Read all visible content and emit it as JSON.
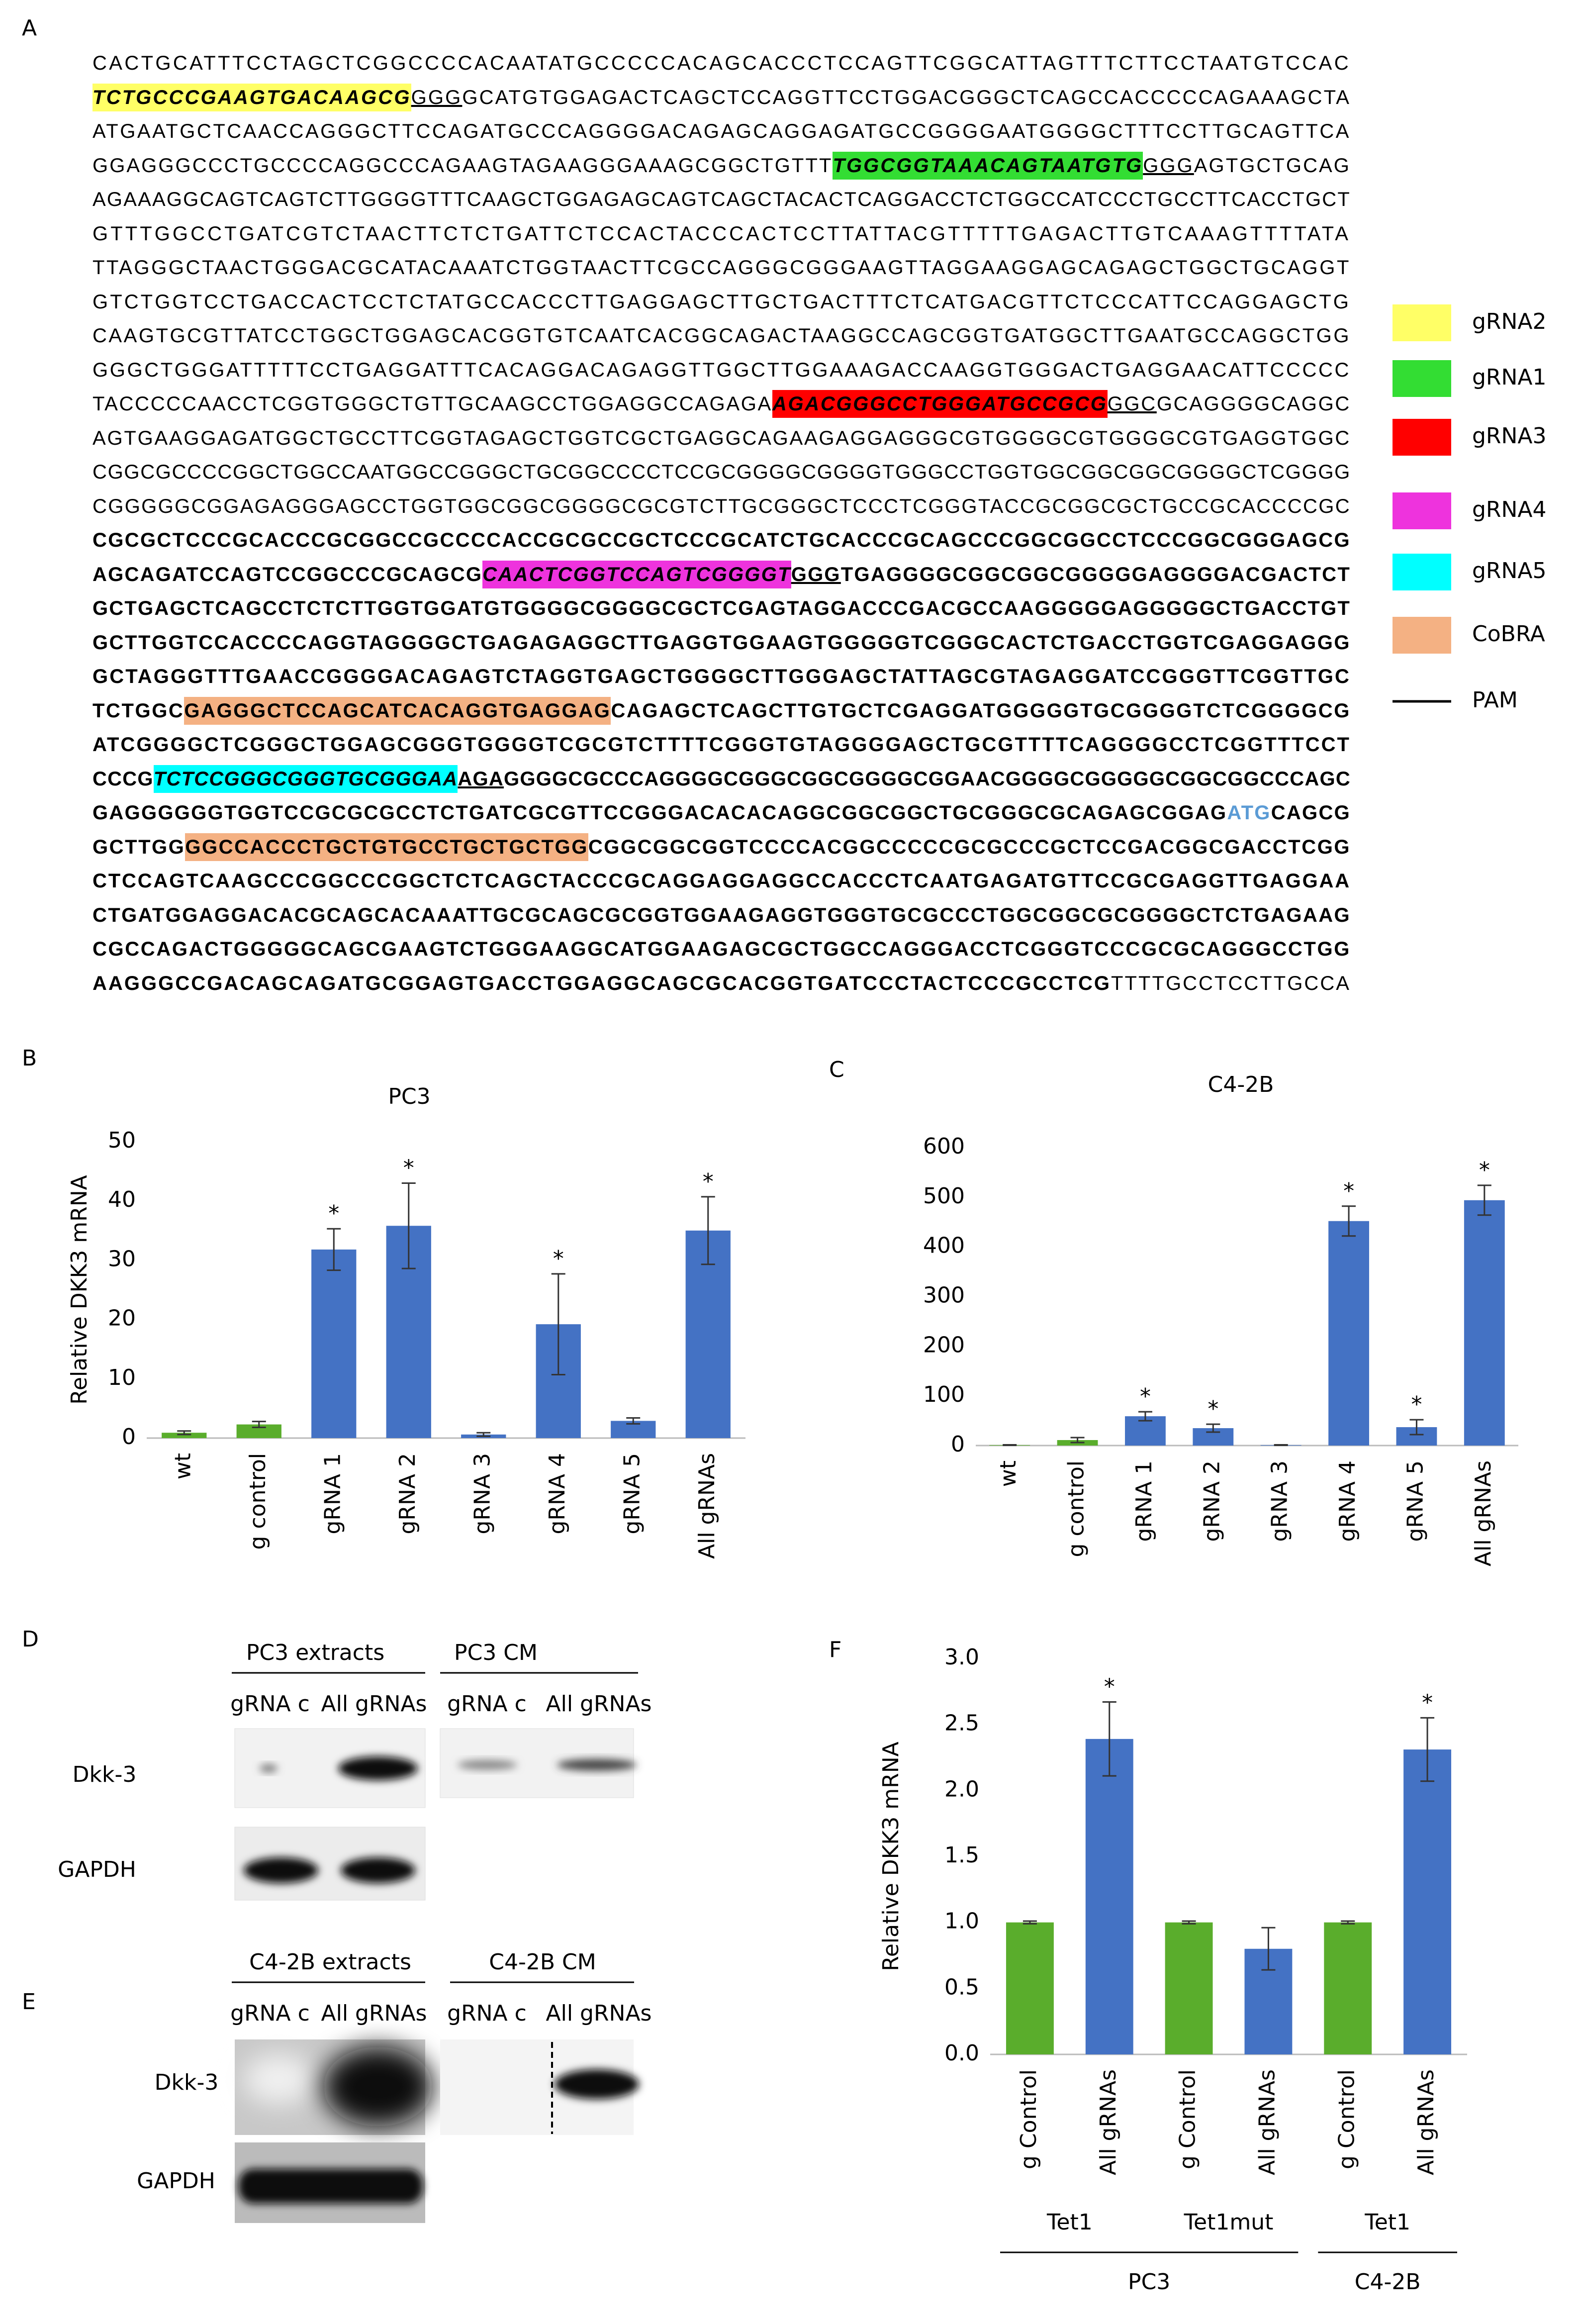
{
  "panels": [
    "A",
    "B",
    "C",
    "D",
    "E",
    "F"
  ],
  "sequence": {
    "lines": [
      [
        {
          "text": "CACTGCATTTCCTAGCTCGGCCCCACAATATGCCCCCACAGCACCCTCCAGTTCGGCATTAGTTTCTTCCTAATGTCCAC"
        }
      ],
      [
        {
          "text": "TCTGCCCGAAGTGACAAGCG",
          "highlight": "gRNA2",
          "bold": true,
          "italic": true
        },
        {
          "text": "GGG",
          "underline": true
        },
        {
          "text": "GCATGTGGAGACTCAGCTCCAGGTTCCTGGACGGGCTCAGCCACCCCCAGAAAGCTA"
        }
      ],
      [
        {
          "text": "ATGAATGCTCAACCAGGGCTTCCAGATGCCCAGGGGACAGAGCAGGAGATGCCGGGGAATGGGGCTTTCCTTGCAGTTCA"
        }
      ],
      [
        {
          "text": "GGAGGGCCCTGCCCCAGGCCCAGAAGTAGAAGGGAAAGCGGCTGTTT"
        },
        {
          "text": "TGGCGGTAAACAGTAATGTG",
          "highlight": "gRNA1",
          "bold": true,
          "italic": true
        },
        {
          "text": "GGG",
          "underline": true
        },
        {
          "text": "AGTGCTGCAG"
        }
      ],
      [
        {
          "text": "AGAAAGGCAGTCAGTCTTGGGGTTTCAAGCTGGAGAGCAGTCAGCTACACTCAGGACCTCTGGCCATCCCTGCCTTCACCTGCT"
        }
      ],
      [
        {
          "text": "GTTTGGCCTGATCGTCTAACTTCTCTGATTCTCCACTACCCACTCCTTATTACGTTTTTGAGACTTGTCAAAGTTTTATA"
        }
      ],
      [
        {
          "text": "TTAGGGCTAACTGGGACGCATACAAATCTGGTAACTTCGCCAGGGCGGGAAGTTAGGAAGGAGCAGAGCTGGCTGCAGGT"
        }
      ],
      [
        {
          "text": "GTCTGGTCCTGACCACTCCTCTATGCCACCCTTGAGGAGCTTGCTGACTTTCTCATGACGTTCTCCCATTCCAGGAGCTG"
        }
      ],
      [
        {
          "text": "CAAGTGCGTTATCCTGGCTGGAGCACGGTGTCAATCACGGCAGACTAAGGCCAGCGGTGATGGCTTGAATGCCAGGCTGG"
        }
      ],
      [
        {
          "text": "GGGCTGGGATTTTTCCTGAGGATTTCACAGGACAGAGGTTGGCTTGGAAAGACCAAGGTGGGACTGAGGAACATTCCCCC"
        }
      ],
      [
        {
          "text": "TACCCCCAACCTCGGTGGGCTGTTGCAAGCCTGGAGGCCAGAGA"
        },
        {
          "text": "AGACGGGCCTGGGATGCCGCG",
          "highlight": "gRNA3",
          "bold": true,
          "italic": true
        },
        {
          "text": "GGC",
          "underline": true
        },
        {
          "text": "GCAGGGGCAGGC"
        }
      ],
      [
        {
          "text": "AGTGAAGGAGATGGCTGCCTTCGGTAGAGCTGGTCGCTGAGGCAGAAGAGGAGGGCGTGGGGCGTGGGGCGTGAGGTGGC"
        }
      ],
      [
        {
          "text": "CGGCGCCCCGGCTGGCCAATGGCCGGGCTGCGGCCCCTCCGCGGGGCGGGGTGGGCCTGGTGGCGGCGGCGGGGCTCGGGG"
        }
      ],
      [
        {
          "text": "CGGGGGCGGAGAGGGAGCCTGGTGGCGGCGGGGCGCGTCTTGCGGGCTCCCTCGGGTACCGCGGCGCTGCCGCACCCCGC"
        }
      ],
      [
        {
          "text": "CGCGCTCCCGCACCCGCGGCCGCCCCACCGCGCCGCTCCCGCATCTGCACCCGCAGCCCGGCGGCCTCCCGGCGGGAGCG",
          "bold": true
        }
      ],
      [
        {
          "text": "AGCAGATCCAGTCCGGCCCGCAGCG",
          "bold": true
        },
        {
          "text": "CAACTCGGTCCAGTCGGGGT",
          "highlight": "gRNA4",
          "bold": true,
          "italic": true
        },
        {
          "text": "GGG",
          "underline": true,
          "bold": true
        },
        {
          "text": "TGAGGGGCGGCGGCGGGGGAGGGGACGACTCT",
          "bold": true
        }
      ],
      [
        {
          "text": "GCTGAGCTCAGCCTCTCTTGGTGGATGTGGGGCGGGGCGCTCGAGTAGGACCCGACGCCAAGGGGGAGGGGGCTGACCTGT",
          "bold": true
        }
      ],
      [
        {
          "text": "GCTTGGTCCACCCCAGGTAGGGGCTGAGAGAGGCTTGAGGTGGAAGTGGGGGTCGGGCACTCTGACCTGGTCGAGGAGGG",
          "bold": true
        }
      ],
      [
        {
          "text": "GCTAGGGTTTGAACCGGGGACAGAGTCTAGGTGAGCTGGGGCTTGGGAGCTATTAGCGTAGAGGATCCGGGTTCGGTTGC",
          "bold": true
        }
      ],
      [
        {
          "text": "TCTGGC",
          "bold": true
        },
        {
          "text": "GAGGGCTCCAGCATCACAGGTGAGGAG",
          "highlight": "CoBRA",
          "bold": true
        },
        {
          "text": "CAGAGCTCAGCTTGTGCTCGAGGATGGGGGTGCGGGGTCTCGGGGCG",
          "bold": true
        }
      ],
      [
        {
          "text": "ATCGGGGCTCGGGCTGGAGCGGGTGGGGTCGCGTCTTTTCGGGTGTAGGGGAGCTGCGTTTTCAGGGGCCTCGGTTTCCT",
          "bold": true
        }
      ],
      [
        {
          "text": "CCCG",
          "bold": true
        },
        {
          "text": "TCTCCGGGCGGGTGCGGGAA",
          "highlight": "gRNA5",
          "bold": true,
          "italic": true
        },
        {
          "text": "AGA",
          "underline": true,
          "bold": true
        },
        {
          "text": "GGGGCGCCCAGGGGCGGGCGGCGGGGCGGAACGGGGCGGGGGCGGCGGCCCAGC",
          "bold": true
        }
      ],
      [
        {
          "text": "GAGGGGGGTGGTCCGCGCGCCTCTGATCGCGTTCCGGGACACACAGGCGGCGGCTGCGGGCGCAGAGCGGAG",
          "bold": true
        },
        {
          "text": "ATG",
          "bold": true,
          "color": "#5b9bd5"
        },
        {
          "text": "CAGCG",
          "bold": true
        }
      ],
      [
        {
          "text": "GCTTGG",
          "bold": true
        },
        {
          "text": "GGCCACCCTGCTGTGCCTGCTGCTGG",
          "highlight": "CoBRA",
          "bold": true
        },
        {
          "text": "CGGCGGCGGTCCCCACGGCCCCCGCGCCCGCTCCGACGGCGACCTCGG",
          "bold": true
        }
      ],
      [
        {
          "text": "CTCCAGTCAAGCCCGGCCCGGCTCTCAGCTACCCGCAGGAGGAGGCCACCCTCAATGAGATGTTCCGCGAGGTTGAGGAA",
          "bold": true
        }
      ],
      [
        {
          "text": "CTGATGGAGGACACGCAGCACAAATTGCGCAGCGCGGTGGAAGAGGTGGGTGCGCCCTGGCGGCGCGGGGCTCTGAGAAG",
          "bold": true
        }
      ],
      [
        {
          "text": "CGCCAGACTGGGGGCAGCGAAGTCTGGGAAGGCATGGAAGAGCGCTGGCCAGGGACCTCGGGTCCCGCGCAGGGCCTGG",
          "bold": true
        }
      ],
      [
        {
          "text": "AAGGGCCGACAGCAGATGCGGAGTGACCTGGAGGCAGCGCACGGTGATCCCTACTCCCGCCTCG",
          "bold": true
        },
        {
          "text": "TTTTGCCTCCTTGCCA"
        }
      ]
    ],
    "legend": [
      {
        "label": "gRNA2",
        "color": "#ffff66"
      },
      {
        "label": "gRNA1",
        "color": "#33dd33"
      },
      {
        "label": "gRNA3",
        "color": "#ff0000"
      },
      {
        "label": "gRNA4",
        "color": "#ee33dd"
      },
      {
        "label": "gRNA5",
        "color": "#00ffff"
      },
      {
        "label": "CoBRA",
        "color": "#f4b183"
      },
      {
        "label": "PAM",
        "color": "#000000",
        "swatch": "line"
      }
    ]
  },
  "chart_data": [
    {
      "type": "bar",
      "title": "PC3",
      "y_label": "Relative DKK3 mRNA",
      "categories": [
        "wt",
        "g control",
        "gRNA 1",
        "gRNA 2",
        "gRNA 3",
        "gRNA 4",
        "gRNA 5",
        "All gRNAs"
      ],
      "values": [
        0.9,
        2.3,
        31.8,
        35.8,
        0.6,
        19.2,
        2.9,
        35
      ],
      "errors": [
        0.3,
        0.5,
        3.5,
        7.2,
        0.3,
        8.5,
        0.5,
        5.7
      ],
      "colors": [
        "#5aad2c",
        "#5aad2c",
        "#4472c4",
        "#4472c4",
        "#4472c4",
        "#4472c4",
        "#4472c4",
        "#4472c4"
      ],
      "ylim": [
        0,
        50
      ],
      "yticks": [
        0,
        10,
        20,
        30,
        40,
        50
      ],
      "annotations": [
        {
          "text": "*",
          "category": "gRNA 1"
        },
        {
          "text": "*",
          "category": "gRNA 2"
        },
        {
          "text": "*",
          "category": "gRNA 4"
        },
        {
          "text": "*",
          "category": "All gRNAs"
        }
      ]
    },
    {
      "type": "bar",
      "title": "C4-2B",
      "categories": [
        "wt",
        "g control",
        "gRNA 1",
        "gRNA 2",
        "gRNA 3",
        "gRNA 4",
        "gRNA 5",
        "All gRNAs"
      ],
      "values": [
        1,
        11,
        59,
        35,
        1,
        452,
        37,
        494
      ],
      "errors": [
        0.5,
        5,
        9,
        8,
        0.5,
        30,
        15,
        30
      ],
      "colors": [
        "#5aad2c",
        "#5aad2c",
        "#4472c4",
        "#4472c4",
        "#4472c4",
        "#4472c4",
        "#4472c4",
        "#4472c4"
      ],
      "ylim": [
        0,
        600
      ],
      "yticks": [
        0,
        100,
        200,
        300,
        400,
        500,
        600
      ],
      "annotations": [
        {
          "text": "*",
          "category": "gRNA 1"
        },
        {
          "text": "*",
          "category": "gRNA 2"
        },
        {
          "text": "*",
          "category": "gRNA 4"
        },
        {
          "text": "*",
          "category": "gRNA 5"
        },
        {
          "text": "*",
          "category": "All gRNAs"
        }
      ]
    },
    {
      "type": "bar",
      "y_label": "Relative DKK3 mRNA",
      "categories": [
        "g Control",
        "All gRNAs",
        "g Control",
        "All gRNAs",
        "g Control",
        "All gRNAs"
      ],
      "values": [
        1.0,
        2.39,
        1.0,
        0.8,
        1.0,
        2.31
      ],
      "errors": [
        0.01,
        0.28,
        0.01,
        0.16,
        0.01,
        0.24
      ],
      "colors": [
        "#5aad2c",
        "#4472c4",
        "#5aad2c",
        "#4472c4",
        "#5aad2c",
        "#4472c4"
      ],
      "ylim": [
        0,
        3
      ],
      "yticks": [
        {
          "value": 0,
          "label": "0.0"
        },
        {
          "value": 0.5,
          "label": "0.5"
        },
        {
          "value": 1,
          "label": "1.0"
        },
        {
          "value": 1.5,
          "label": "1.5"
        },
        {
          "value": 2,
          "label": "2.0"
        },
        {
          "value": 2.5,
          "label": "2.5"
        },
        {
          "value": 3,
          "label": "3.0"
        }
      ],
      "annotations": [
        {
          "text": "*",
          "index": 1
        },
        {
          "text": "*",
          "index": 5
        }
      ],
      "groups": [
        {
          "label": "Tet1",
          "count": 2
        },
        {
          "label": "Tet1mut",
          "count": 2
        },
        {
          "label": "Tet1",
          "count": 2
        }
      ],
      "supergroups": [
        {
          "label": "PC3",
          "count": 4
        },
        {
          "label": "C4-2B",
          "count": 2
        }
      ]
    }
  ],
  "blots": {
    "D": {
      "headers": [
        "PC3 extracts",
        "PC3 CM"
      ],
      "lanes": [
        "gRNA c",
        "All gRNAs",
        "gRNA c",
        "All gRNAs"
      ],
      "rows": [
        "Dkk-3",
        "GAPDH"
      ]
    },
    "E": {
      "headers": [
        "C4-2B extracts",
        "C4-2B CM"
      ],
      "lanes": [
        "gRNA c",
        "All gRNAs",
        "gRNA c",
        "All gRNAs"
      ],
      "rows": [
        "Dkk-3",
        "GAPDH"
      ]
    }
  }
}
